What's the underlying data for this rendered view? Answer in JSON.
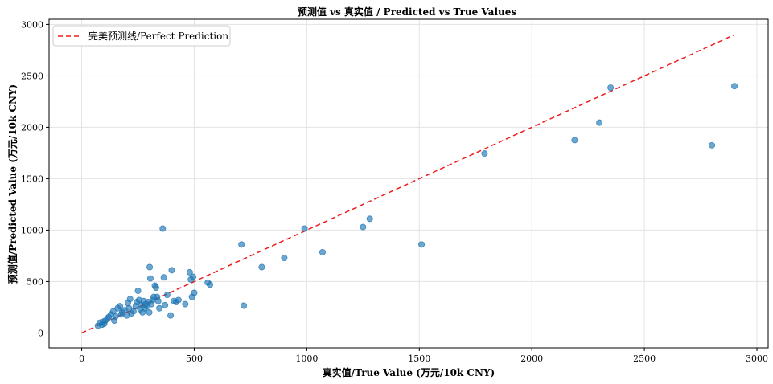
{
  "chart_data": {
    "type": "scatter",
    "title": "预测值 vs 真实值 / Predicted vs True Values",
    "xlabel": "真实值/True Value (万元/10k CNY)",
    "ylabel": "预测值/Predicted Value (万元/10k CNY)",
    "xlim": [
      -145,
      3050
    ],
    "ylim": [
      -145,
      3050
    ],
    "xticks": [
      0,
      500,
      1000,
      1500,
      2000,
      2500,
      3000
    ],
    "yticks": [
      0,
      500,
      1000,
      1500,
      2000,
      2500,
      3000
    ],
    "grid": true,
    "legend_position": "top-left",
    "reference_line": {
      "label": "完美预测线/Perfect Prediction",
      "from": [
        0,
        0
      ],
      "to": [
        2900,
        2900
      ],
      "style": "dashed",
      "color": "#ee1c1c"
    },
    "series": [
      {
        "color": "#1f77b4",
        "points": [
          [
            72,
            70
          ],
          [
            80,
            100
          ],
          [
            90,
            80
          ],
          [
            95,
            110
          ],
          [
            100,
            90
          ],
          [
            105,
            120
          ],
          [
            115,
            140
          ],
          [
            120,
            155
          ],
          [
            130,
            180
          ],
          [
            140,
            210
          ],
          [
            145,
            120
          ],
          [
            150,
            160
          ],
          [
            160,
            240
          ],
          [
            170,
            260
          ],
          [
            175,
            180
          ],
          [
            180,
            200
          ],
          [
            190,
            220
          ],
          [
            200,
            170
          ],
          [
            205,
            290
          ],
          [
            210,
            240
          ],
          [
            215,
            330
          ],
          [
            220,
            190
          ],
          [
            230,
            210
          ],
          [
            240,
            260
          ],
          [
            245,
            300
          ],
          [
            250,
            410
          ],
          [
            255,
            320
          ],
          [
            260,
            230
          ],
          [
            265,
            270
          ],
          [
            270,
            200
          ],
          [
            275,
            310
          ],
          [
            280,
            240
          ],
          [
            285,
            280
          ],
          [
            290,
            260
          ],
          [
            295,
            300
          ],
          [
            300,
            200
          ],
          [
            302,
            640
          ],
          [
            305,
            530
          ],
          [
            310,
            280
          ],
          [
            315,
            320
          ],
          [
            320,
            350
          ],
          [
            325,
            460
          ],
          [
            330,
            440
          ],
          [
            335,
            350
          ],
          [
            340,
            310
          ],
          [
            345,
            240
          ],
          [
            360,
            1015
          ],
          [
            365,
            540
          ],
          [
            370,
            270
          ],
          [
            380,
            370
          ],
          [
            395,
            170
          ],
          [
            400,
            610
          ],
          [
            410,
            310
          ],
          [
            420,
            300
          ],
          [
            430,
            320
          ],
          [
            460,
            280
          ],
          [
            480,
            590
          ],
          [
            485,
            520
          ],
          [
            490,
            350
          ],
          [
            495,
            545
          ],
          [
            500,
            390
          ],
          [
            560,
            490
          ],
          [
            570,
            470
          ],
          [
            710,
            860
          ],
          [
            720,
            265
          ],
          [
            800,
            640
          ],
          [
            900,
            730
          ],
          [
            990,
            1015
          ],
          [
            1070,
            785
          ],
          [
            1250,
            1030
          ],
          [
            1280,
            1110
          ],
          [
            1510,
            860
          ],
          [
            1790,
            1745
          ],
          [
            2190,
            1875
          ],
          [
            2300,
            2045
          ],
          [
            2350,
            2385
          ],
          [
            2800,
            1825
          ],
          [
            2900,
            2400
          ]
        ]
      }
    ]
  }
}
